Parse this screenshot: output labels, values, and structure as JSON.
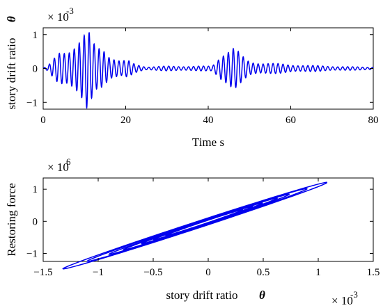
{
  "chart_data": [
    {
      "type": "line",
      "xlabel": "Time s",
      "ylabel": "story drift ratio",
      "ylabel_symbol": "θ",
      "exponent_base": "× 10",
      "exponent_power": "-3",
      "xlim": [
        0,
        80
      ],
      "ylim": [
        -1.2,
        1.2
      ],
      "xticks": [
        0,
        20,
        40,
        60,
        80
      ],
      "yticks": [
        -1,
        0,
        1
      ],
      "xtick_labels": [
        "0",
        "20",
        "40",
        "60",
        "80"
      ],
      "ytick_labels": [
        "−1",
        "0",
        "1"
      ],
      "color": "#0000ee",
      "series": [
        {
          "envelope": [
            [
              0,
              0.02
            ],
            [
              1,
              0.06
            ],
            [
              2,
              0.2
            ],
            [
              3,
              0.35
            ],
            [
              4,
              0.5
            ],
            [
              5,
              0.55
            ],
            [
              6,
              0.6
            ],
            [
              7,
              0.75
            ],
            [
              8,
              0.85
            ],
            [
              9,
              0.95
            ],
            [
              10,
              1.05
            ],
            [
              10.6,
              1.2
            ],
            [
              11,
              1.1
            ],
            [
              12,
              0.8
            ],
            [
              13,
              0.65
            ],
            [
              14,
              0.7
            ],
            [
              15,
              0.65
            ],
            [
              16,
              0.45
            ],
            [
              17,
              0.35
            ],
            [
              18,
              0.28
            ],
            [
              19,
              0.22
            ],
            [
              20,
              0.25
            ],
            [
              21,
              0.22
            ],
            [
              22,
              0.15
            ],
            [
              25,
              0.05
            ],
            [
              30,
              0.07
            ],
            [
              35,
              0.07
            ],
            [
              40,
              0.07
            ],
            [
              41,
              0.08
            ],
            [
              42,
              0.25
            ],
            [
              43,
              0.45
            ],
            [
              44,
              0.55
            ],
            [
              45,
              0.6
            ],
            [
              46,
              0.65
            ],
            [
              47,
              0.55
            ],
            [
              48,
              0.4
            ],
            [
              49,
              0.3
            ],
            [
              50,
              0.22
            ],
            [
              55,
              0.16
            ],
            [
              60,
              0.12
            ],
            [
              65,
              0.09
            ],
            [
              70,
              0.07
            ],
            [
              75,
              0.05
            ],
            [
              80,
              0.04
            ]
          ]
        }
      ]
    },
    {
      "type": "line",
      "xlabel": "story drift ratio",
      "xlabel_symbol": "θ",
      "ylabel": "Restoring force",
      "y_exponent_base": "× 10",
      "y_exponent_power": "6",
      "x_exponent_base": "× 10",
      "x_exponent_power": "-3",
      "xlim": [
        -1.5,
        1.5
      ],
      "ylim": [
        -1.25,
        1.35
      ],
      "xticks": [
        -1.5,
        -1,
        -0.5,
        0,
        0.5,
        1,
        1.5
      ],
      "yticks": [
        -1,
        0,
        1
      ],
      "xtick_labels": [
        "−1.5",
        "−1",
        "−0.5",
        "0",
        "0.5",
        "1",
        "1.5"
      ],
      "ytick_labels": [
        "−1",
        "0",
        "1"
      ],
      "color": "#0000ee",
      "loops": [
        {
          "amp": 1.2,
          "slope": 1.12,
          "width": 0.09
        },
        {
          "amp": 1.0,
          "slope": 1.13,
          "width": 0.08
        },
        {
          "amp": 0.82,
          "slope": 1.14,
          "width": 0.06
        },
        {
          "amp": 0.7,
          "slope": 1.15,
          "width": 0.05
        },
        {
          "amp": 0.55,
          "slope": 1.15,
          "width": 0.04
        },
        {
          "amp": 0.45,
          "slope": 1.15,
          "width": 0.035
        },
        {
          "amp": 0.35,
          "slope": 1.15,
          "width": 0.03
        }
      ]
    }
  ]
}
